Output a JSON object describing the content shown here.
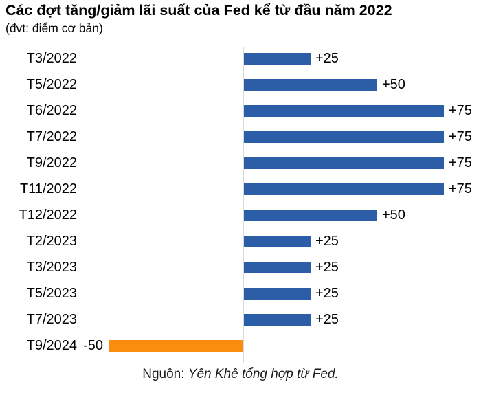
{
  "title": "Các đợt tăng/giảm lãi suất của Fed kể từ đầu năm 2022",
  "subtitle": "(đvt: điểm cơ bản)",
  "source": {
    "prefix": "Nguồn: ",
    "text": "Yên Khê tổng hợp từ Fed."
  },
  "colors": {
    "positive_bar": "#2B5EA7",
    "negative_bar": "#FA8C0E",
    "axis": "#D9D9D9",
    "text": "#000000"
  },
  "chart_data": {
    "type": "bar",
    "orientation": "horizontal",
    "title": "Các đợt tăng/giảm lãi suất của Fed kể từ đầu năm 2022",
    "unit_label": "(đvt: điểm cơ bản)",
    "xlabel": "",
    "ylabel": "",
    "xlim": [
      -75,
      90
    ],
    "grid": false,
    "legend": "none",
    "zero_axis_shown": true,
    "categories": [
      "T3/2022",
      "T5/2022",
      "T6/2022",
      "T7/2022",
      "T9/2022",
      "T11/2022",
      "T12/2022",
      "T2/2023",
      "T3/2023",
      "T5/2023",
      "T7/2023",
      "T9/2024"
    ],
    "values": [
      25,
      50,
      75,
      75,
      75,
      75,
      50,
      25,
      25,
      25,
      25,
      -50
    ],
    "data_labels": [
      "+25",
      "+50",
      "+75",
      "+75",
      "+75",
      "+75",
      "+50",
      "+25",
      "+25",
      "+25",
      "+25",
      "-50"
    ]
  }
}
